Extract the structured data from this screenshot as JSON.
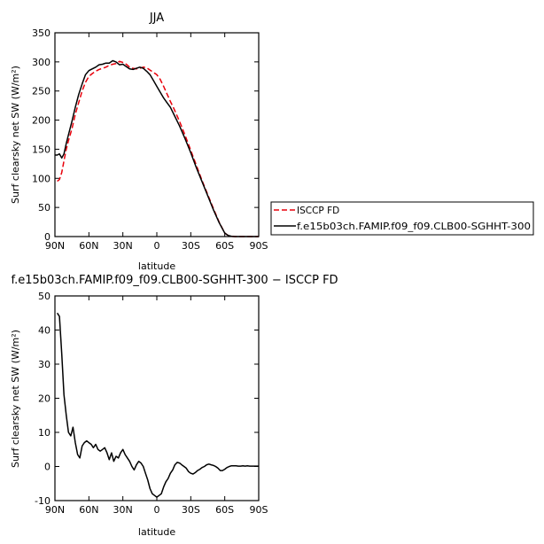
{
  "chart_data": [
    {
      "type": "line",
      "title": "JJA",
      "xlabel": "latitude",
      "ylabel": "Surf clearsky net SW (W/m²)",
      "xlim": [
        90,
        -90
      ],
      "ylim": [
        0,
        350
      ],
      "xticks": [
        {
          "value": 90,
          "label": "90N"
        },
        {
          "value": 60,
          "label": "60N"
        },
        {
          "value": 30,
          "label": "30N"
        },
        {
          "value": 0,
          "label": "0"
        },
        {
          "value": -30,
          "label": "30S"
        },
        {
          "value": -60,
          "label": "60S"
        },
        {
          "value": -90,
          "label": "90S"
        }
      ],
      "yticks": [
        0,
        50,
        100,
        150,
        200,
        250,
        300,
        350
      ],
      "legend_position": "right",
      "series": [
        {
          "name": "ISCCP FD",
          "color": "#e8000b",
          "dash": "dashed",
          "x": [
            88,
            86,
            84,
            82,
            80,
            78,
            75,
            72,
            69,
            66,
            63,
            60,
            57,
            54,
            51,
            48,
            45,
            42,
            39,
            36,
            33,
            30,
            27,
            24,
            21,
            18,
            15,
            12,
            9,
            6,
            3,
            0,
            -3,
            -6,
            -9,
            -12,
            -15,
            -20,
            -25,
            -30,
            -35,
            -40,
            -45,
            -50,
            -55,
            -60,
            -63,
            -66,
            -69,
            -72,
            -75,
            -78,
            -81,
            -84,
            -87,
            -90
          ],
          "values": [
            95,
            98,
            110,
            130,
            150,
            165,
            185,
            210,
            230,
            250,
            265,
            275,
            280,
            284,
            287,
            289,
            291,
            294,
            296,
            297,
            301,
            299,
            296,
            291,
            289,
            288,
            289,
            291,
            290,
            286,
            282,
            278,
            270,
            258,
            245,
            232,
            220,
            198,
            174,
            148,
            122,
            96,
            72,
            48,
            25,
            6,
            2,
            0.5,
            0,
            0,
            0,
            0,
            0,
            0,
            0,
            0
          ]
        },
        {
          "name": "f.e15b03ch.FAMIP.f09_f09.CLB00-SGHHT-300",
          "color": "#000000",
          "dash": "solid",
          "x": [
            90,
            88,
            86,
            84,
            82,
            80,
            78,
            75,
            72,
            69,
            66,
            63,
            60,
            57,
            54,
            51,
            48,
            45,
            42,
            39,
            36,
            33,
            30,
            27,
            24,
            21,
            18,
            15,
            12,
            9,
            6,
            3,
            0,
            -3,
            -6,
            -9,
            -12,
            -15,
            -20,
            -25,
            -30,
            -35,
            -40,
            -45,
            -50,
            -55,
            -60,
            -63,
            -66,
            -69,
            -72,
            -75,
            -78,
            -81,
            -84,
            -87,
            -90
          ],
          "values": [
            140,
            140,
            142,
            135,
            142,
            160,
            175,
            198,
            222,
            244,
            262,
            278,
            285,
            288,
            291,
            295,
            296,
            298,
            298,
            302,
            300,
            295,
            296,
            292,
            288,
            287,
            289,
            291,
            289,
            284,
            278,
            268,
            258,
            248,
            238,
            230,
            222,
            210,
            190,
            168,
            144,
            118,
            94,
            70,
            46,
            24,
            6,
            2,
            0.5,
            0,
            0,
            0,
            0,
            0,
            0,
            0,
            0
          ]
        }
      ]
    },
    {
      "type": "line",
      "title": "f.e15b03ch.FAMIP.f09_f09.CLB00-SGHHT-300 − ISCCP FD",
      "xlabel": "latitude",
      "ylabel": "Surf clearsky net SW (W/m²)",
      "xlim": [
        90,
        -90
      ],
      "ylim": [
        -10,
        50
      ],
      "xticks": [
        {
          "value": 90,
          "label": "90N"
        },
        {
          "value": 60,
          "label": "60N"
        },
        {
          "value": 30,
          "label": "30N"
        },
        {
          "value": 0,
          "label": "0"
        },
        {
          "value": -30,
          "label": "30S"
        },
        {
          "value": -60,
          "label": "60S"
        },
        {
          "value": -90,
          "label": "90S"
        }
      ],
      "yticks": [
        -10,
        0,
        10,
        20,
        30,
        40,
        50
      ],
      "series": [
        {
          "color": "#000000",
          "dash": "solid",
          "x": [
            88,
            86,
            84,
            82,
            80,
            78,
            76,
            74,
            72,
            70,
            68,
            66,
            64,
            62,
            60,
            58,
            56,
            54,
            52,
            50,
            48,
            46,
            44,
            42,
            40,
            38,
            36,
            34,
            32,
            30,
            28,
            26,
            24,
            22,
            20,
            18,
            16,
            14,
            12,
            10,
            8,
            6,
            4,
            2,
            0,
            -2,
            -4,
            -6,
            -8,
            -10,
            -12,
            -14,
            -16,
            -18,
            -20,
            -22,
            -24,
            -26,
            -28,
            -30,
            -32,
            -34,
            -36,
            -38,
            -40,
            -42,
            -44,
            -46,
            -48,
            -50,
            -52,
            -54,
            -56,
            -58,
            -60,
            -62,
            -64,
            -66,
            -68,
            -70,
            -72,
            -74,
            -76,
            -78,
            -80,
            -82,
            -84,
            -86,
            -88,
            -90
          ],
          "values": [
            45,
            44,
            33,
            21,
            15,
            10,
            9,
            11.5,
            7,
            3.5,
            2.5,
            6,
            7,
            7.5,
            7,
            6.5,
            5.5,
            6.5,
            5,
            4.5,
            5,
            5.5,
            4,
            2,
            4,
            1.5,
            3,
            2.5,
            4,
            5,
            3.5,
            2.5,
            1.5,
            0,
            -1,
            0.5,
            1.5,
            1,
            0,
            -2,
            -4,
            -6.5,
            -8,
            -8.5,
            -9,
            -8.5,
            -8,
            -6,
            -4.5,
            -3.5,
            -2,
            -1,
            0.5,
            1.2,
            1,
            0.5,
            0,
            -0.5,
            -1.5,
            -2,
            -2.2,
            -1.8,
            -1.2,
            -0.8,
            -0.3,
            0,
            0.5,
            0.7,
            0.5,
            0.3,
            0,
            -0.5,
            -1.2,
            -1.2,
            -0.8,
            -0.3,
            0,
            0.2,
            0.2,
            0.2,
            0.1,
            0.1,
            0.2,
            0.1,
            0.2,
            0.1,
            0.1,
            0.1,
            0.1,
            0.1
          ]
        }
      ]
    }
  ]
}
